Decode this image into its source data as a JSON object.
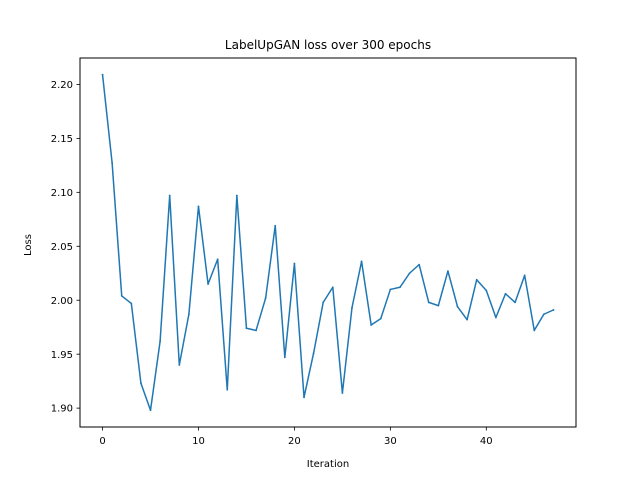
{
  "chart_data": {
    "type": "line",
    "title": "LabelUpGAN loss over 300 epochs",
    "xlabel": "Iteration",
    "ylabel": "Loss",
    "xlim": [
      -2.35,
      49.35
    ],
    "ylim": [
      1.8825,
      2.2245
    ],
    "xticks": [
      0,
      10,
      20,
      30,
      40
    ],
    "yticks": [
      1.9,
      1.95,
      2.0,
      2.05,
      2.1,
      2.15,
      2.2
    ],
    "ytick_labels": [
      "1.90",
      "1.95",
      "2.00",
      "2.05",
      "2.10",
      "2.15",
      "2.20"
    ],
    "grid": false,
    "series": [
      {
        "color": "#1f77b4",
        "x": [
          0,
          1,
          2,
          3,
          4,
          5,
          6,
          7,
          8,
          9,
          10,
          11,
          12,
          13,
          14,
          15,
          16,
          17,
          18,
          19,
          20,
          21,
          22,
          23,
          24,
          25,
          26,
          27,
          28,
          29,
          30,
          31,
          32,
          33,
          34,
          35,
          36,
          37,
          38,
          39,
          40,
          41,
          42,
          43,
          44,
          45,
          46,
          47
        ],
        "values": [
          2.209,
          2.127,
          2.004,
          1.997,
          1.923,
          1.898,
          1.962,
          2.097,
          1.94,
          1.987,
          2.087,
          2.015,
          2.038,
          1.917,
          2.097,
          1.974,
          1.972,
          2.002,
          2.069,
          1.947,
          2.034,
          1.91,
          1.951,
          1.998,
          2.012,
          1.914,
          1.993,
          2.036,
          1.977,
          1.983,
          2.01,
          2.012,
          2.025,
          2.033,
          1.998,
          1.995,
          2.027,
          1.994,
          1.982,
          2.019,
          2.009,
          1.984,
          2.006,
          1.998,
          2.023,
          1.972,
          1.987,
          1.991
        ]
      }
    ]
  }
}
